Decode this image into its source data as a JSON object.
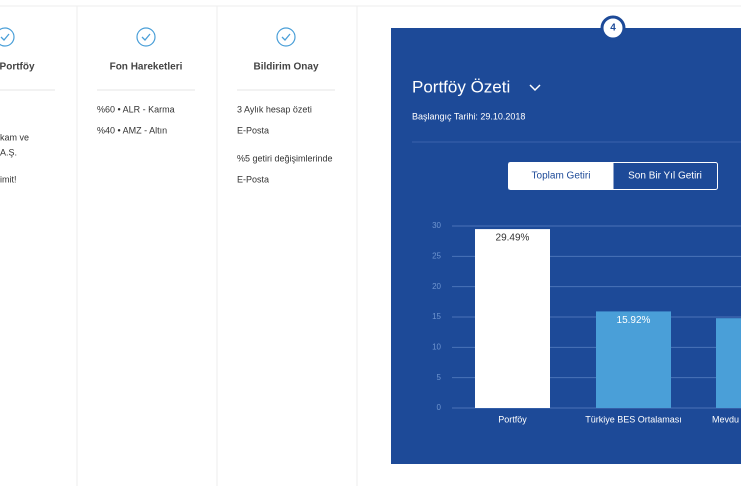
{
  "steps": [
    {
      "title": "l Portföy",
      "items": [
        "kam ve",
        "A.Ş.",
        "imit!"
      ]
    },
    {
      "title": "Fon Hareketleri",
      "items": [
        "%60 • ALR - Karma",
        "%40 • AMZ - Altın"
      ]
    },
    {
      "title": "Bildirim Onay",
      "items": [
        "3 Aylık hesap özeti",
        "E-Posta",
        "%5 getiri değişimlerinde",
        "E-Posta"
      ]
    }
  ],
  "panel": {
    "step": "4",
    "title": "Portföy Özeti",
    "subtitle": "Başlangıç Tarihi: 29.10.2018",
    "tabs": [
      "Toplam Getiri",
      "Son Bir Yıl Getiri"
    ]
  },
  "chart_data": {
    "type": "bar",
    "categories": [
      "Portföy",
      "Türkiye BES Ortalaması",
      "Mevdu"
    ],
    "values": [
      29.49,
      15.92,
      14.8
    ],
    "value_labels": [
      "29.49%",
      "15.92%",
      null
    ],
    "colors": [
      "#ffffff",
      "#4a9fd8",
      "#4a9fd8"
    ],
    "ylim": [
      0,
      30
    ],
    "yticks": [
      0,
      5,
      10,
      15,
      20,
      25,
      30
    ],
    "grid": true
  }
}
